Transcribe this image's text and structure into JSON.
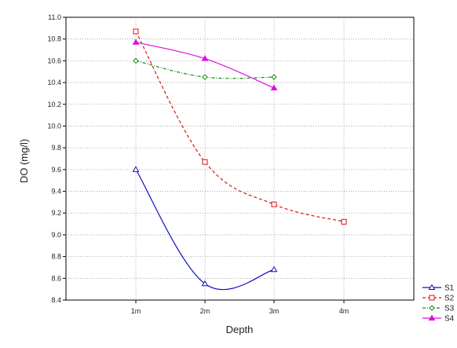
{
  "chart_data": {
    "type": "line",
    "xlabel": "Depth",
    "ylabel": "DO (mg/l)",
    "categories": [
      "1m",
      "2m",
      "3m",
      "4m"
    ],
    "ylim": [
      8.4,
      11.0
    ],
    "yticks": [
      8.4,
      8.6,
      8.8,
      9.0,
      9.2,
      9.4,
      9.6,
      9.8,
      10.0,
      10.2,
      10.4,
      10.6,
      10.8,
      11.0
    ],
    "ytick_labels": [
      "8.4",
      "8.6",
      "8.8",
      "9.0",
      "9.2",
      "9.4",
      "9.6",
      "9.8",
      "10.0",
      "10.2",
      "10.4",
      "10.6",
      "10.8",
      "11.0"
    ],
    "grid": true,
    "legend_position": "bottom-right",
    "series": [
      {
        "name": "S1",
        "values": [
          9.6,
          8.55,
          8.68,
          null
        ],
        "color": "#1010c0",
        "dash": "solid",
        "marker": "triangle"
      },
      {
        "name": "S2",
        "values": [
          10.87,
          9.67,
          9.28,
          9.12
        ],
        "color": "#dd1111",
        "dash": "dashed",
        "marker": "square"
      },
      {
        "name": "S3",
        "values": [
          10.6,
          10.45,
          10.45,
          null
        ],
        "color": "#118811",
        "dash": "dashdot",
        "marker": "diamond"
      },
      {
        "name": "S4",
        "values": [
          10.77,
          10.62,
          10.35,
          null
        ],
        "color": "#dd11dd",
        "dash": "solid",
        "marker": "triangle-filled"
      }
    ]
  }
}
